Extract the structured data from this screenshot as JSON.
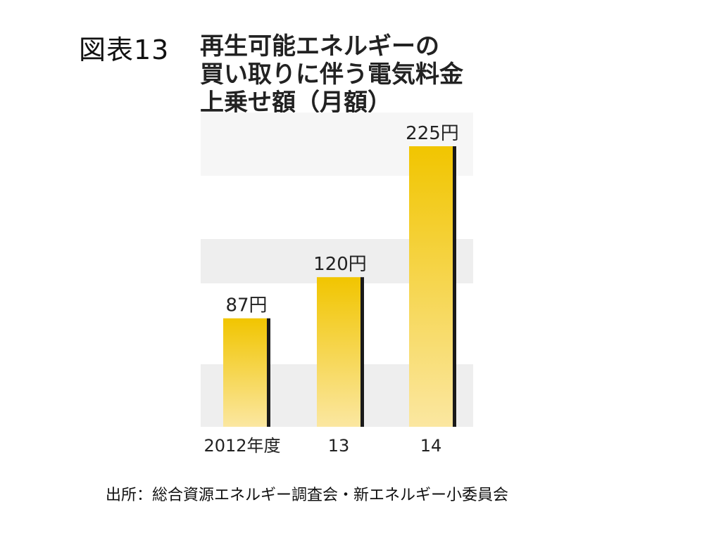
{
  "figure_label": "図表13",
  "title_lines": [
    "再生可能エネルギーの",
    "買い取りに伴う電気料金",
    "上乗せ額（月額）"
  ],
  "source": "出所：総合資源エネルギー調査会・新エネルギー小委員会",
  "colors": {
    "bar_top": "#f1c500",
    "bar_bottom": "#fbe7a1",
    "bar_shadow": "#1a1a1a",
    "band": "#eeeeee"
  },
  "chart_data": {
    "type": "bar",
    "categories": [
      "2012年度",
      "13",
      "14"
    ],
    "values": [
      87,
      120,
      225
    ],
    "data_labels": [
      "87円",
      "120円",
      "225円"
    ],
    "title": "再生可能エネルギーの買い取りに伴う電気料金上乗せ額（月額）",
    "xlabel": "",
    "ylabel": "",
    "ylim": [
      0,
      225
    ],
    "grid": false,
    "legend": "none"
  }
}
